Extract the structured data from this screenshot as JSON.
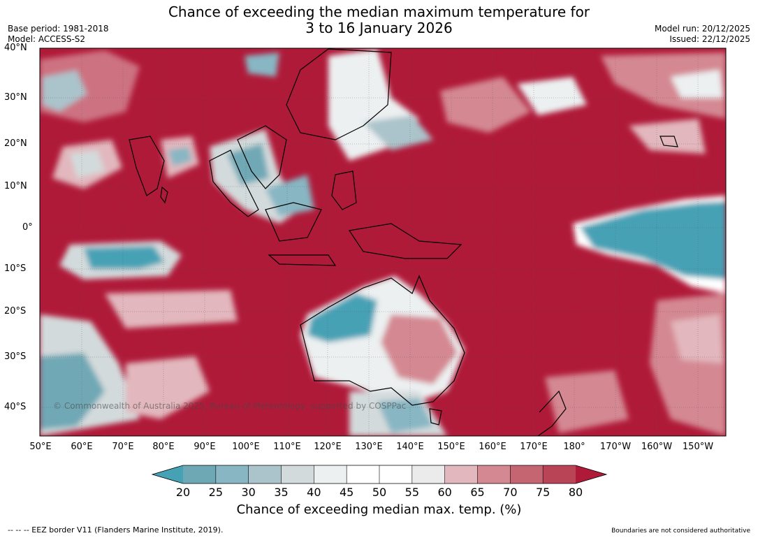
{
  "title_line1": "Chance of exceeding the median maximum temperature for",
  "title_line2": "3 to 16 January 2026",
  "base_period": "Base period: 1981-2018",
  "model": "Model: ACCESS-S2",
  "model_run": "Model run: 20/12/2025",
  "issued": "Issued: 22/12/2025",
  "copyright": "© Commonwealth of Australia 2025, Bureau of Meteorology, supported by COSPPac",
  "lat_labels": [
    "40°N",
    "30°N",
    "20°N",
    "10°N",
    "0°",
    "10°S",
    "20°S",
    "30°S",
    "40°S"
  ],
  "lon_labels": [
    "50°E",
    "60°E",
    "70°E",
    "80°E",
    "90°E",
    "100°E",
    "110°E",
    "120°E",
    "130°E",
    "140°E",
    "150°E",
    "160°E",
    "170°E",
    "180°",
    "170°W",
    "160°W",
    "150°W"
  ],
  "colorbar": {
    "ticks": [
      "20",
      "25",
      "30",
      "35",
      "40",
      "45",
      "50",
      "55",
      "60",
      "65",
      "70",
      "75",
      "80"
    ],
    "label": "Chance of exceeding median max. temp. (%)",
    "colors": [
      "#47a1b5",
      "#6fa8b5",
      "#88b6c3",
      "#abc3ca",
      "#d3dadb",
      "#ecf0f1",
      "#ffffff",
      "#ffffff",
      "#ebebeb",
      "#e2b7bd",
      "#d48892",
      "#c56571",
      "#b94456",
      "#b01a39"
    ]
  },
  "footer_left": "--  --  -- EEZ border V11 (Flanders Marine Institute, 2019).",
  "footer_right": "Boundaries are not considered authoritative"
}
